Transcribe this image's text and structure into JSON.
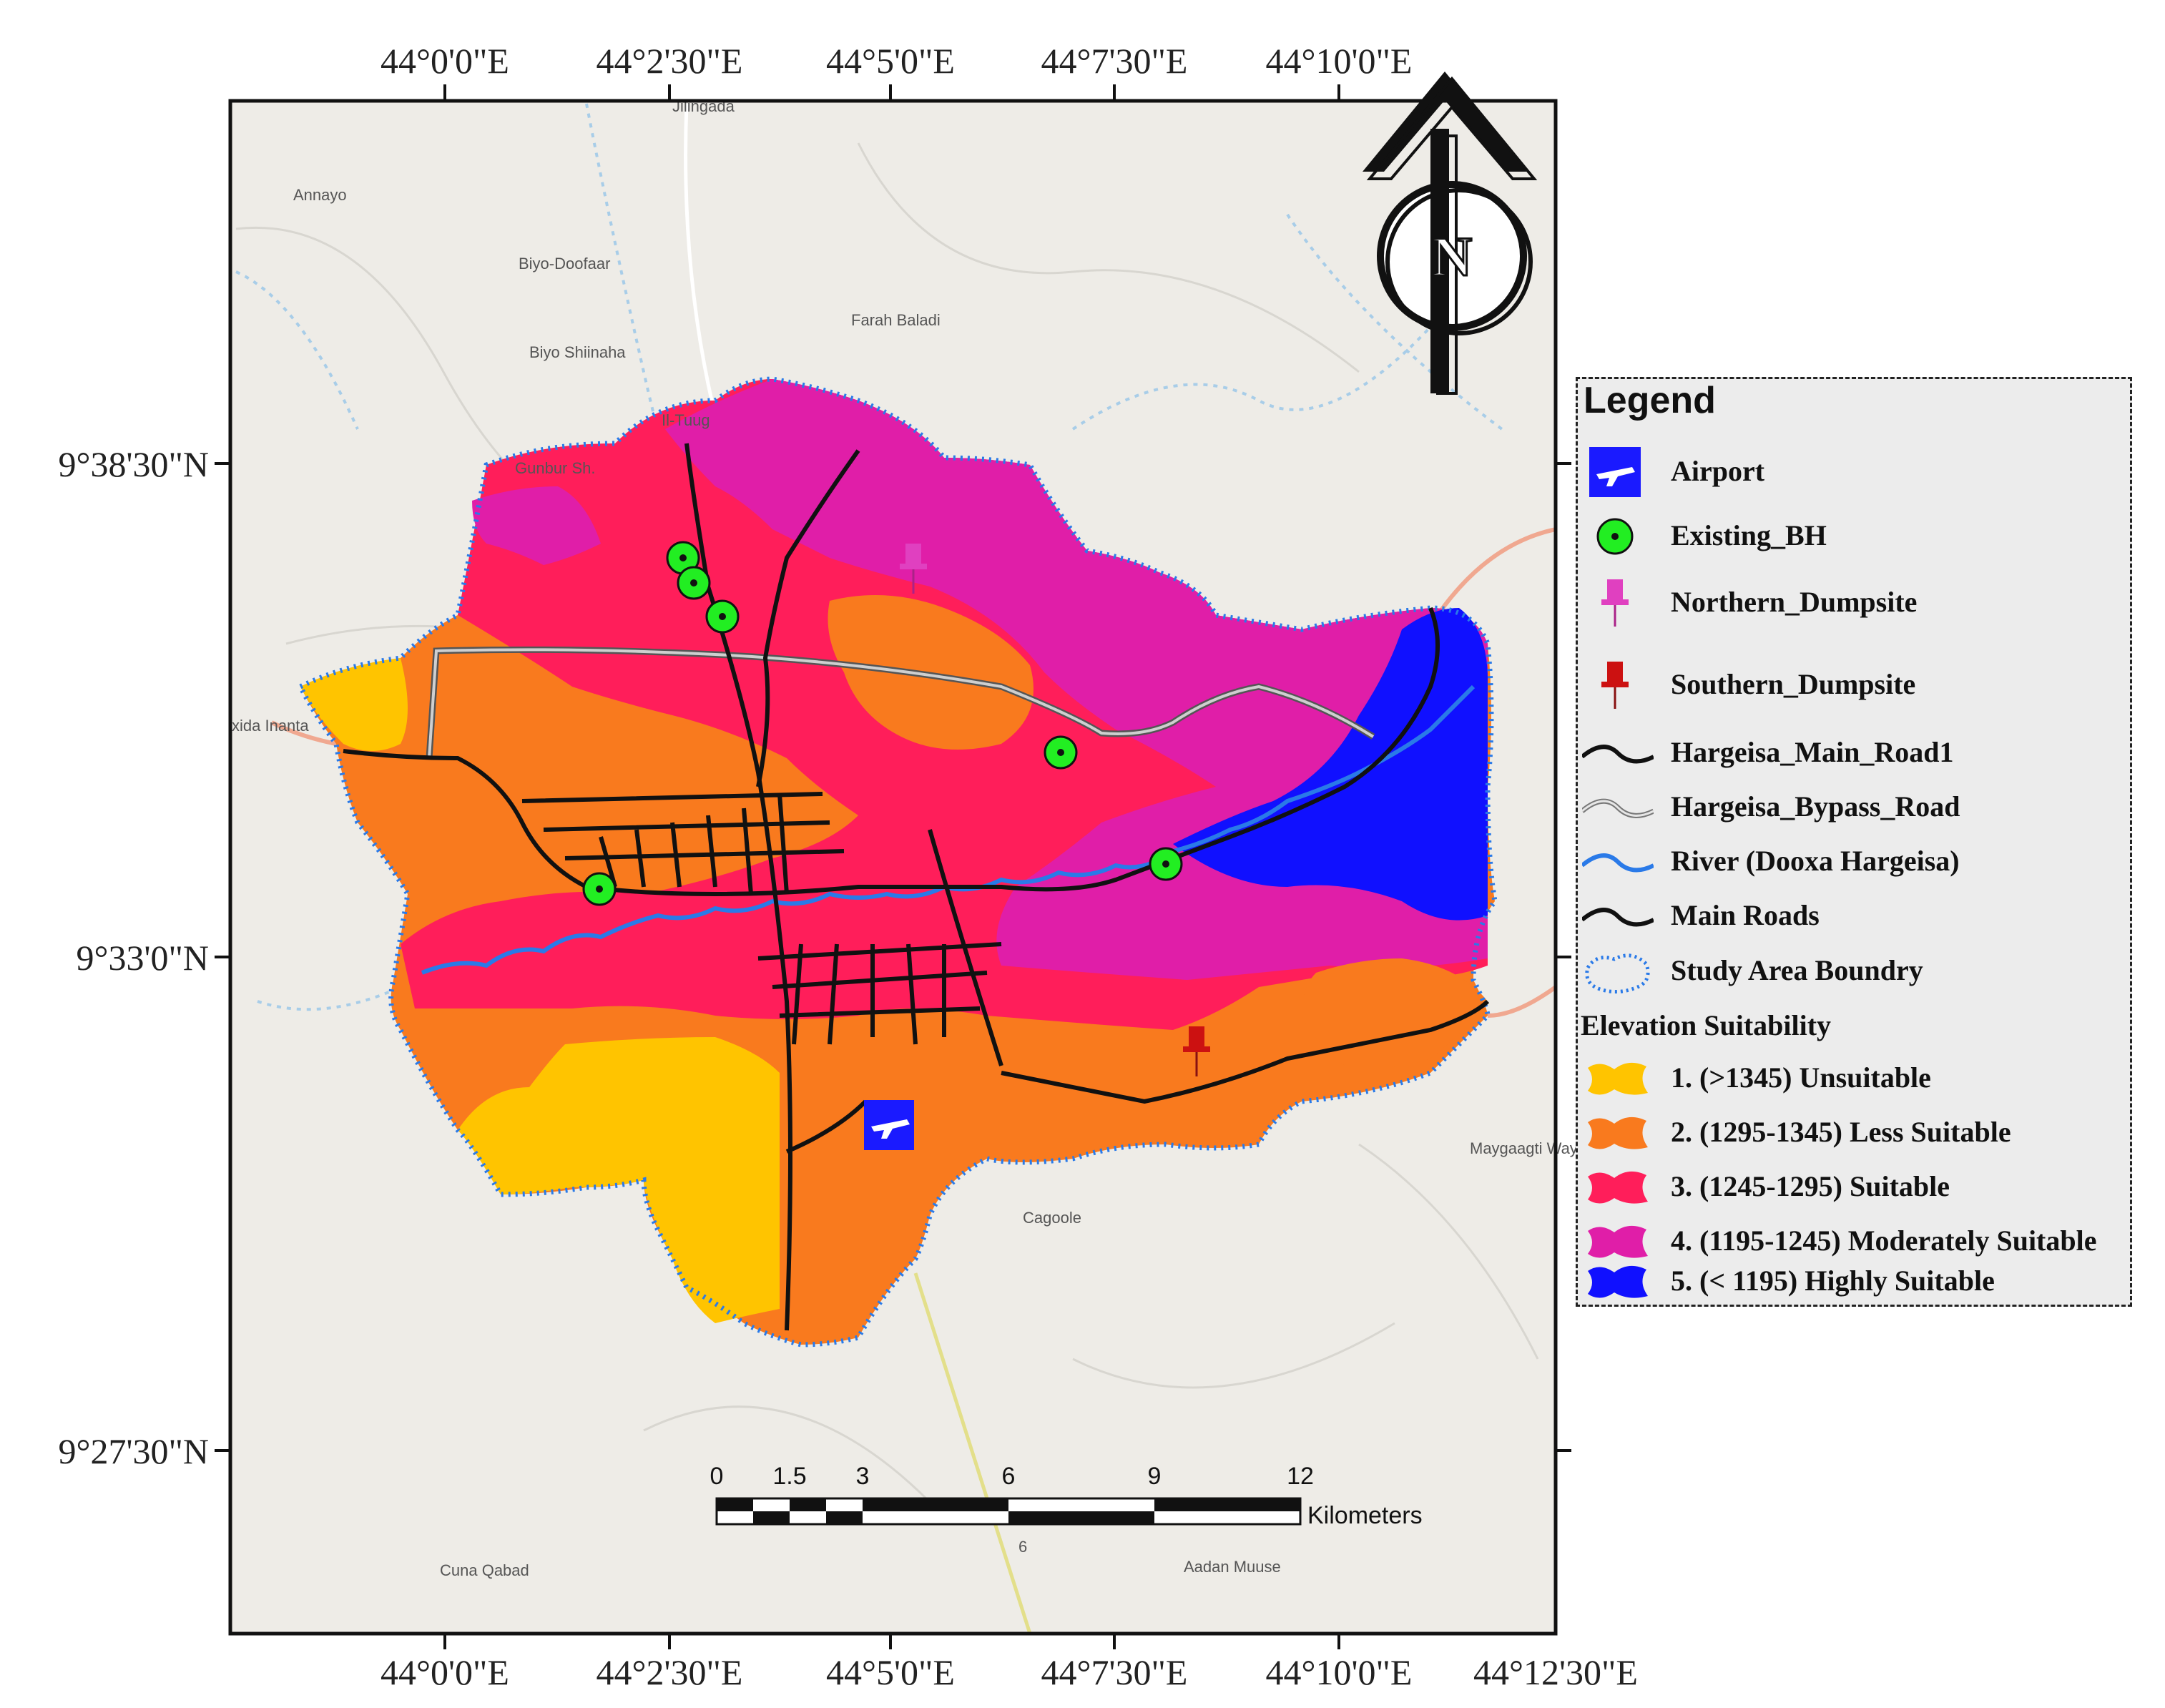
{
  "map": {
    "top_ticks": [
      "44°0'0\"E",
      "44°2'30\"E",
      "44°5'0\"E",
      "44°7'30\"E",
      "44°10'0\"E"
    ],
    "bottom_ticks": [
      "44°0'0\"E",
      "44°2'30\"E",
      "44°5'0\"E",
      "44°7'30\"E",
      "44°10'0\"E",
      "44°12'30\"E"
    ],
    "left_ticks": [
      "9°38'30\"N",
      "9°33'0\"N",
      "9°27'30\"N"
    ],
    "places": [
      "Annayo",
      "Biyo-Doofaar",
      "Biyo Shiinaha",
      "Farah Baladi",
      "Il-Tuug",
      "Gunbur Sh.",
      "Jilingada",
      "xida Inanta",
      "Cagoole",
      "Maygaagti Wayn",
      "Cuna Qabad",
      "Aadan Muuse",
      "6"
    ],
    "north_arrow_label": "N"
  },
  "scale_bar": {
    "labels": [
      "0",
      "1.5",
      "3",
      "6",
      "9",
      "12"
    ],
    "units": "Kilometers"
  },
  "legend": {
    "title": "Legend",
    "items": [
      {
        "label": "Airport",
        "icon": "airport-icon",
        "color": "#1a1aff"
      },
      {
        "label": "Existing_BH",
        "icon": "borehole-icon",
        "color": "#22ee22"
      },
      {
        "label": "Northern_Dumpsite",
        "icon": "pushpin-magenta-icon",
        "color": "#e040c0"
      },
      {
        "label": "Southern_Dumpsite",
        "icon": "pushpin-red-icon",
        "color": "#cc1111"
      },
      {
        "label": "Hargeisa_Main_Road1",
        "icon": "black-line-icon",
        "color": "#111111"
      },
      {
        "label": "Hargeisa_Bypass_Road",
        "icon": "grey-line-icon",
        "color": "#999999"
      },
      {
        "label": "River (Dooxa Hargeisa)",
        "icon": "blue-line-icon",
        "color": "#2a7ae8"
      },
      {
        "label": "Main Roads",
        "icon": "black-line-icon",
        "color": "#111111"
      },
      {
        "label": "Study Area Boundry",
        "icon": "dotted-boundary-icon",
        "color": "#2a7ae8"
      }
    ],
    "elevation_title": "Elevation Suitability",
    "elevation_classes": [
      {
        "label": "1. (>1345) Unsuitable",
        "color": "#ffc400"
      },
      {
        "label": "2. (1295-1345) Less Suitable",
        "color": "#f97a1e"
      },
      {
        "label": "3. (1245-1295) Suitable",
        "color": "#ff1e5a"
      },
      {
        "label": "4. (1195-1245) Moderately Suitable",
        "color": "#e01ea8"
      },
      {
        "label": "5. (< 1195) Highly Suitable",
        "color": "#1010ff"
      }
    ]
  }
}
